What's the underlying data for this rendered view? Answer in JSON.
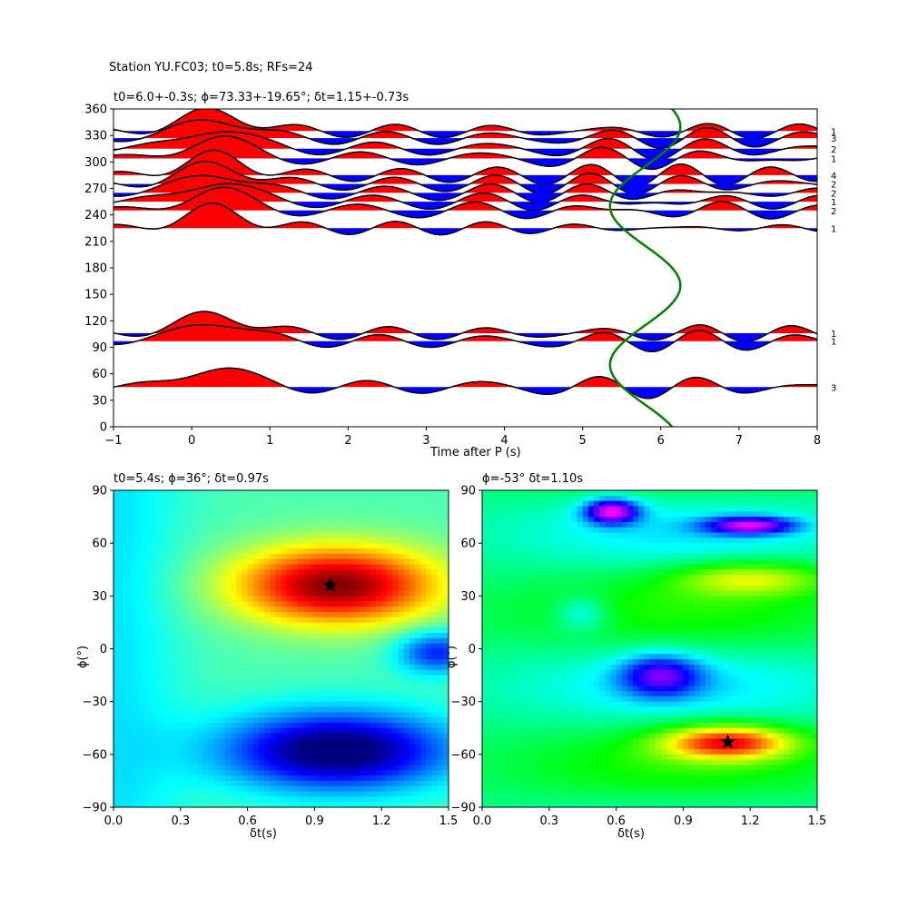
{
  "figure": {
    "suptitle": "Station YU.FC03; t0=5.8s; RFs=24",
    "colors": {
      "positive": "#ff0000",
      "negative": "#0000ff",
      "model_curve": "#008000",
      "trace": "#000000"
    }
  },
  "chart_data": [
    {
      "type": "line",
      "title": "t0=6.0+-0.3s; ϕ=73.33+-19.65°; δt=1.15+-0.73s",
      "xlabel": "Time after P (s)",
      "ylabel": "",
      "xlim": [
        -1,
        8
      ],
      "ylim": [
        0,
        360
      ],
      "xticks": [
        "−1",
        "0",
        "1",
        "2",
        "3",
        "4",
        "5",
        "6",
        "7",
        "8"
      ],
      "yticks": [
        "0",
        "30",
        "60",
        "90",
        "120",
        "150",
        "180",
        "210",
        "240",
        "270",
        "300",
        "330",
        "360"
      ],
      "description_traces": "receiver-function wiggles plotted at back-azimuth (deg), positive fill red, negative fill blue",
      "traces": [
        {
          "baz": 335,
          "count": "1"
        },
        {
          "baz": 327,
          "count": "3"
        },
        {
          "baz": 315,
          "count": "2"
        },
        {
          "baz": 304,
          "count": "1"
        },
        {
          "baz": 285,
          "count": "4"
        },
        {
          "baz": 275,
          "count": "2"
        },
        {
          "baz": 265,
          "count": "2"
        },
        {
          "baz": 255,
          "count": "1"
        },
        {
          "baz": 245,
          "count": "2"
        },
        {
          "baz": 225,
          "count": "1"
        },
        {
          "baz": 106,
          "count": "1"
        },
        {
          "baz": 97,
          "count": "1"
        },
        {
          "baz": 45,
          "count": "3"
        }
      ],
      "model_curve": {
        "mean_time": 5.8,
        "amplitude": 0.45,
        "period_deg": 180,
        "phase_deg": 160
      }
    },
    {
      "type": "heatmap",
      "title": "t0=5.4s; ϕ=36°; δt=0.97s",
      "xlabel": "δt(s)",
      "ylabel": "ϕ(°)",
      "xlim": [
        0,
        1.5
      ],
      "ylim": [
        -90,
        90
      ],
      "xticks": [
        "0.0",
        "0.3",
        "0.6",
        "0.9",
        "1.2",
        "1.5"
      ],
      "yticks": [
        "−90",
        "−60",
        "−30",
        "0",
        "30",
        "60",
        "90"
      ],
      "colormap": "jet",
      "best": {
        "dt": 0.97,
        "phi": 36
      }
    },
    {
      "type": "heatmap",
      "title": "ϕ=-53° δt=1.10s",
      "xlabel": "δt(s)",
      "ylabel": "ϕ(°)",
      "xlim": [
        0,
        1.5
      ],
      "ylim": [
        -90,
        90
      ],
      "xticks": [
        "0.0",
        "0.3",
        "0.6",
        "0.9",
        "1.2",
        "1.5"
      ],
      "yticks": [
        "−90",
        "−60",
        "−30",
        "0",
        "30",
        "60",
        "90"
      ],
      "colormap": "hsv",
      "best": {
        "dt": 1.1,
        "phi": -53
      }
    }
  ]
}
